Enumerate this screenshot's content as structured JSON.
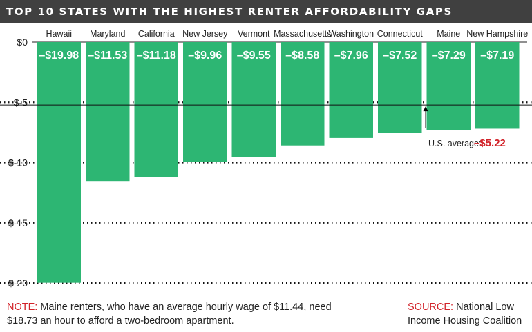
{
  "title": "TOP 10 STATES WITH THE HIGHEST RENTER AFFORDABILITY GAPS",
  "colors": {
    "bar": "#2db673",
    "accent": "#d2232a",
    "title_bg": "#404040"
  },
  "chart_data": {
    "type": "bar",
    "categories": [
      "Hawaii",
      "Maryland",
      "California",
      "New Jersey",
      "Vermont",
      "Massachusetts",
      "Washington",
      "Connecticut",
      "Maine",
      "New Hampshire"
    ],
    "values": [
      -19.98,
      -11.53,
      -11.18,
      -9.96,
      -9.55,
      -8.58,
      -7.96,
      -7.52,
      -7.29,
      -7.19
    ],
    "value_labels": [
      "–$19.98",
      "–$11.53",
      "–$11.18",
      "–$9.96",
      "–$9.55",
      "–$8.58",
      "–$7.96",
      "–$7.52",
      "–$7.29",
      "–$7.19"
    ],
    "yticks": [
      0,
      -5,
      -10,
      -15,
      -20
    ],
    "ytick_labels": [
      "$0",
      "$-5",
      "$-10",
      "$-15",
      "$-20"
    ],
    "ylim": [
      -20,
      0
    ],
    "grid": "dotted",
    "reference_line": {
      "value": -5.22,
      "label": "U.S. average:",
      "value_label": "–$5.22"
    }
  },
  "note": {
    "label": "NOTE:",
    "text": "Maine renters, who have an average hourly wage of $11.44, need $18.73 an hour to afford a two-bedroom apartment."
  },
  "source": {
    "label": "SOURCE:",
    "text": "National Low Income Housing Coalition"
  }
}
